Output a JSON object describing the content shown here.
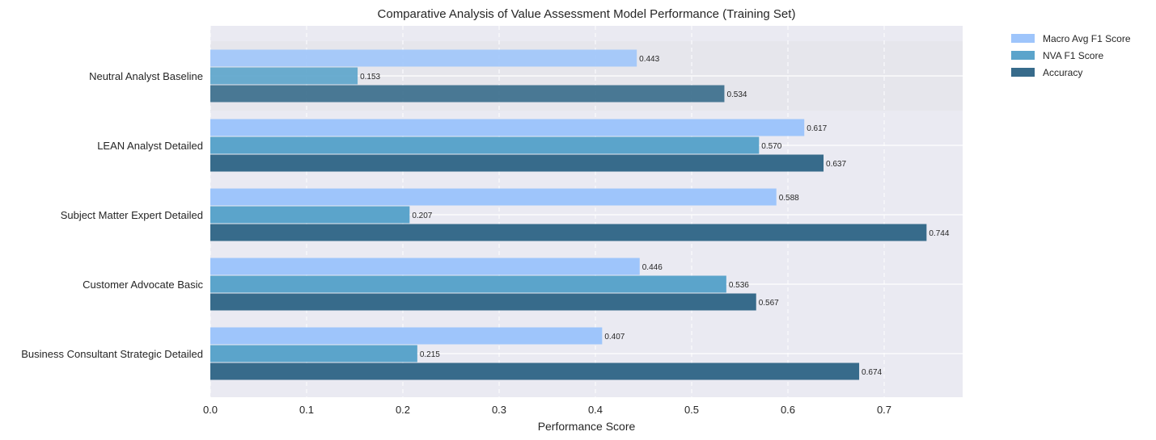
{
  "chart_data": {
    "type": "bar",
    "orientation": "horizontal",
    "title": "Comparative Analysis of Value Assessment Model Performance (Training Set)",
    "xlabel": "Performance Score",
    "ylabel": "",
    "xlim": [
      0,
      0.78
    ],
    "xticks": [
      "0.0",
      "0.1",
      "0.2",
      "0.3",
      "0.4",
      "0.5",
      "0.6",
      "0.7"
    ],
    "xtick_values": [
      0,
      0.1,
      0.2,
      0.3,
      0.4,
      0.5,
      0.6,
      0.7
    ],
    "grid": true,
    "legend_position": "upper-right-outside",
    "highlight_category": "Neutral Analyst Baseline",
    "categories": [
      "Neutral Analyst Baseline",
      "LEAN Analyst Detailed",
      "Subject Matter Expert Detailed",
      "Customer Advocate Basic",
      "Business Consultant Strategic Detailed"
    ],
    "series": [
      {
        "name": "Macro Avg F1 Score",
        "color": "#9ec5fb",
        "values": [
          0.443,
          0.617,
          0.588,
          0.446,
          0.407
        ],
        "labels": [
          "0.443",
          "0.617",
          "0.588",
          "0.446",
          "0.407"
        ]
      },
      {
        "name": "NVA F1 Score",
        "color": "#5ba4cb",
        "values": [
          0.153,
          0.57,
          0.207,
          0.536,
          0.215
        ],
        "labels": [
          "0.153",
          "0.570",
          "0.207",
          "0.536",
          "0.215"
        ]
      },
      {
        "name": "Accuracy",
        "color": "#376b8b",
        "values": [
          0.534,
          0.637,
          0.744,
          0.567,
          0.674
        ],
        "labels": [
          "0.534",
          "0.637",
          "0.744",
          "0.567",
          "0.674"
        ]
      }
    ]
  }
}
